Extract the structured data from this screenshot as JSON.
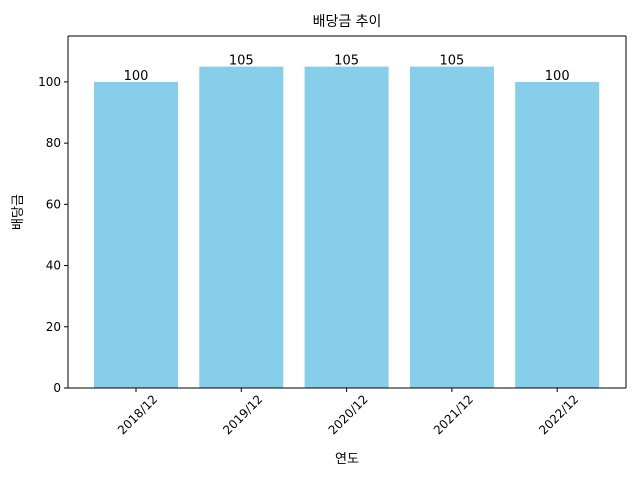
{
  "chart_data": {
    "type": "bar",
    "title": "배당금 추이",
    "xlabel": "연도",
    "ylabel": "배당금",
    "categories": [
      "2018/12",
      "2019/12",
      "2020/12",
      "2021/12",
      "2022/12"
    ],
    "values": [
      100,
      105,
      105,
      105,
      100
    ],
    "data_labels": [
      "100",
      "105",
      "105",
      "105",
      "100"
    ],
    "ylim": [
      0,
      115
    ],
    "yticks": [
      0,
      20,
      40,
      60,
      80,
      100
    ],
    "ytick_labels": [
      "0",
      "20",
      "40",
      "60",
      "80",
      "100"
    ],
    "bar_color": "#87ceeb",
    "grid": false,
    "legend": "none"
  }
}
